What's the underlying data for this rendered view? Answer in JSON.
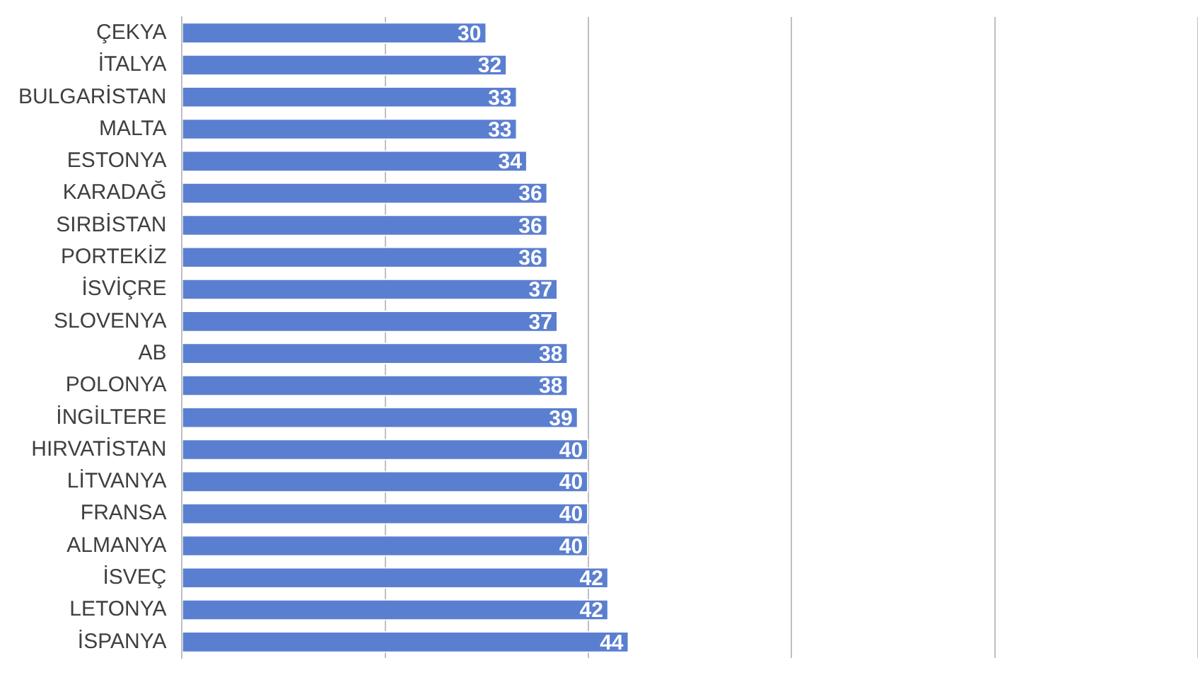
{
  "chart_data": {
    "type": "bar",
    "orientation": "horizontal",
    "categories": [
      "ÇEKYA",
      "İTALYA",
      "BULGARİSTAN",
      "MALTA",
      "ESTONYA",
      "KARADAĞ",
      "SIRBİSTAN",
      "PORTEKİZ",
      "İSVİÇRE",
      "SLOVENYA",
      "AB",
      "POLONYA",
      "İNGİLTERE",
      "HIRVATİSTAN",
      "LİTVANYA",
      "FRANSA",
      "ALMANYA",
      "İSVEÇ",
      "LETONYA",
      "İSPANYA"
    ],
    "values": [
      30,
      32,
      33,
      33,
      34,
      36,
      36,
      36,
      37,
      37,
      38,
      38,
      39,
      40,
      40,
      40,
      40,
      42,
      42,
      44
    ],
    "color": "#5b7fd0",
    "xlim": [
      0,
      100
    ],
    "xticks": [
      {
        "value": 0,
        "label": null
      },
      {
        "value": 20,
        "label": null
      },
      {
        "value": 40,
        "label": null
      },
      {
        "value": 60,
        "label": null
      },
      {
        "value": 80,
        "label": null
      },
      {
        "value": 100,
        "label": null
      }
    ],
    "grid": "x",
    "tick_labels": "y",
    "data_labels": true
  }
}
